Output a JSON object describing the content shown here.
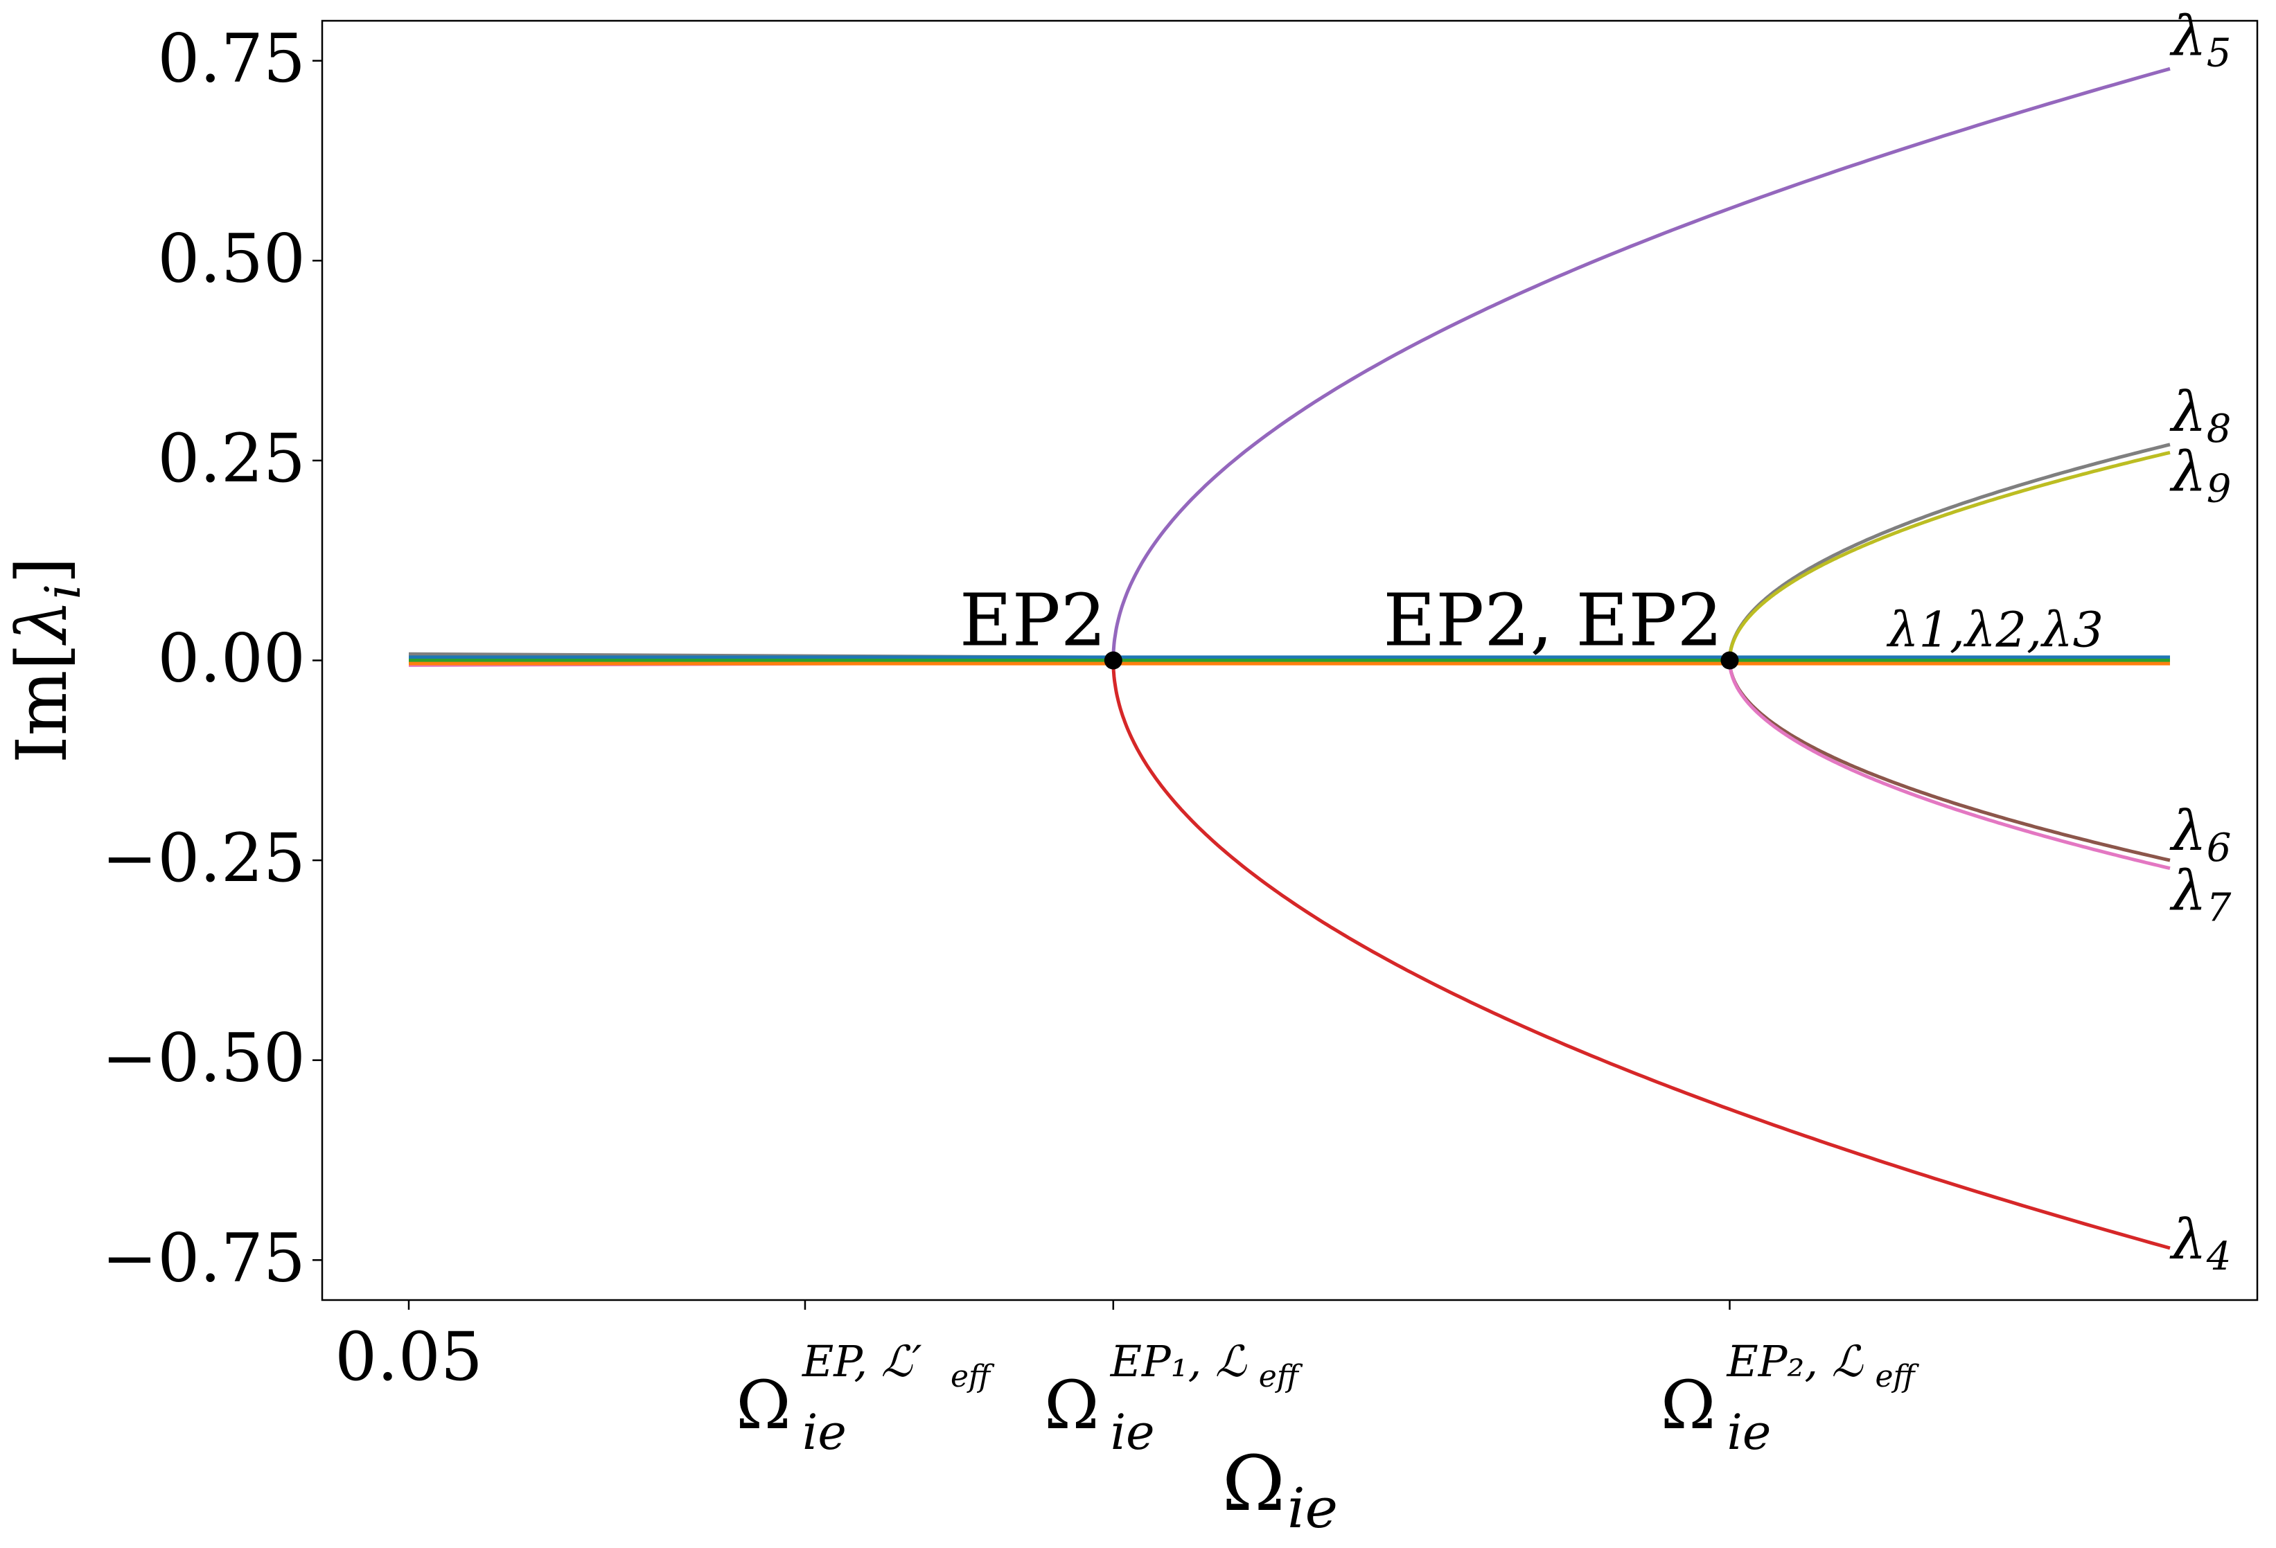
{
  "chart_data": {
    "type": "line",
    "xlabel": {
      "base": "Ω",
      "sub": "ie"
    },
    "ylabel": {
      "prefix": "Im[",
      "var": "λ",
      "sub": "i",
      "suffix": "]"
    },
    "xlim": [
      0.0,
      1.0
    ],
    "ylim": [
      -0.8,
      0.8
    ],
    "yticks": [
      {
        "value": 0.75,
        "label": "0.75"
      },
      {
        "value": 0.5,
        "label": "0.50"
      },
      {
        "value": 0.25,
        "label": "0.25"
      },
      {
        "value": 0.0,
        "label": "0.00"
      },
      {
        "value": -0.25,
        "label": "−0.25"
      },
      {
        "value": -0.5,
        "label": "−0.50"
      },
      {
        "value": -0.75,
        "label": "−0.75"
      }
    ],
    "xticks": [
      {
        "value": 0.0,
        "label": "0.05"
      },
      {
        "value": 0.225,
        "base": "Ω",
        "sub": "ie",
        "sup": "EP, ℒ′",
        "supSub": "eff"
      },
      {
        "value": 0.4,
        "base": "Ω",
        "sub": "ie",
        "sup": "EP₁, ℒ",
        "supSub": "eff"
      },
      {
        "value": 0.75,
        "base": "Ω",
        "sub": "ie",
        "sup": "EP₂, ℒ",
        "supSub": "eff"
      }
    ],
    "exceptional_points": [
      {
        "x": 0.4,
        "y": 0.0,
        "label": "EP2"
      },
      {
        "x": 0.75,
        "y": 0.0,
        "label": "EP2, EP2"
      }
    ],
    "x_end": 1.0,
    "series": [
      {
        "name": "λ5",
        "color": "#9467bd",
        "branch_x": 0.4,
        "end_y": 0.74,
        "base_y": 0.004
      },
      {
        "name": "λ4",
        "color": "#d62728",
        "branch_x": 0.4,
        "end_y": -0.735,
        "base_y": -0.004
      },
      {
        "name": "λ8",
        "color": "#7f7f7f",
        "branch_x": 0.75,
        "end_y": 0.27,
        "base_y": 0.008
      },
      {
        "name": "λ9",
        "color": "#bcbd22",
        "branch_x": 0.75,
        "end_y": 0.26,
        "base_y": 0.002
      },
      {
        "name": "λ6",
        "color": "#8c564b",
        "branch_x": 0.75,
        "end_y": -0.25,
        "base_y": -0.002
      },
      {
        "name": "λ7",
        "color": "#e377c2",
        "branch_x": 0.75,
        "end_y": -0.26,
        "base_y": -0.006
      },
      {
        "name": "λ1",
        "color": "#1f77b4",
        "branch_x": null,
        "end_y": 0.004,
        "base_y": 0.004
      },
      {
        "name": "λ2",
        "color": "#2ca02c",
        "branch_x": null,
        "end_y": 0.0,
        "base_y": 0.0
      },
      {
        "name": "λ3",
        "color": "#ff7f0e",
        "branch_x": null,
        "end_y": -0.004,
        "base_y": -0.004
      }
    ],
    "curve_labels": [
      {
        "var": "λ",
        "sub": "5",
        "series": "λ5"
      },
      {
        "var": "λ",
        "sub": "8",
        "series": "λ8"
      },
      {
        "var": "λ",
        "sub": "9",
        "series": "λ9"
      },
      {
        "var": "λ",
        "sub": "6",
        "series": "λ6"
      },
      {
        "var": "λ",
        "sub": "7",
        "series": "λ7"
      },
      {
        "var": "λ",
        "sub": "4",
        "series": "λ4"
      }
    ],
    "flat_label": {
      "text": "λ1,λ2,λ3"
    }
  }
}
